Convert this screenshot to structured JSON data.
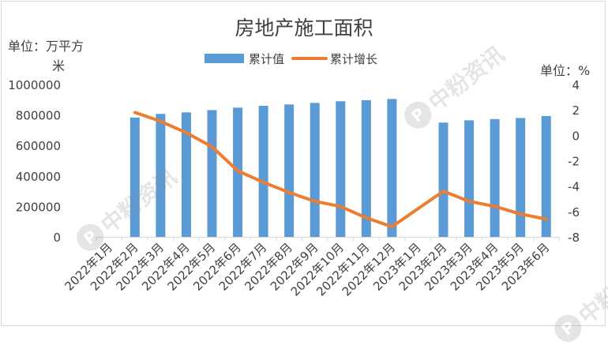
{
  "watermark": {
    "text": "中粉资讯",
    "glyph": "P"
  },
  "chart_data": {
    "type": "bar",
    "title": "房地产施工面积",
    "left_axis_unit": "单位：万平方米",
    "right_axis_unit": "单位：%",
    "categories": [
      "2022年1月",
      "2022年2月",
      "2022年3月",
      "2022年4月",
      "2022年5月",
      "2022年6月",
      "2022年7月",
      "2022年8月",
      "2022年9月",
      "2022年10月",
      "2022年11月",
      "2022年12月",
      "2023年1月",
      "2023年2月",
      "2023年3月",
      "2023年4月",
      "2023年5月",
      "2023年6月"
    ],
    "series": [
      {
        "name": "累计值",
        "type": "bar",
        "axis": "left",
        "color": "#5b9bd5",
        "values": [
          null,
          783000,
          807000,
          817000,
          832000,
          848000,
          860000,
          869000,
          879000,
          890000,
          897000,
          905000,
          null,
          750000,
          765000,
          773000,
          780000,
          793000
        ]
      },
      {
        "name": "累计增长",
        "type": "line",
        "axis": "right",
        "color": "#ed7d31",
        "values": [
          null,
          1.8,
          1.1,
          0.2,
          -0.9,
          -2.8,
          -3.7,
          -4.5,
          -5.2,
          -5.6,
          -6.5,
          -7.2,
          null,
          -4.4,
          -5.2,
          -5.6,
          -6.2,
          -6.6
        ]
      }
    ],
    "y_left": {
      "min": 0,
      "max": 1000000,
      "ticks": [
        "0",
        "200000",
        "400000",
        "600000",
        "800000",
        "1000000"
      ]
    },
    "y_right": {
      "min": -8,
      "max": 4,
      "ticks": [
        "-8",
        "-6",
        "-4",
        "-2",
        "0",
        "2",
        "4"
      ]
    },
    "legend_position": "top",
    "grid": false
  }
}
